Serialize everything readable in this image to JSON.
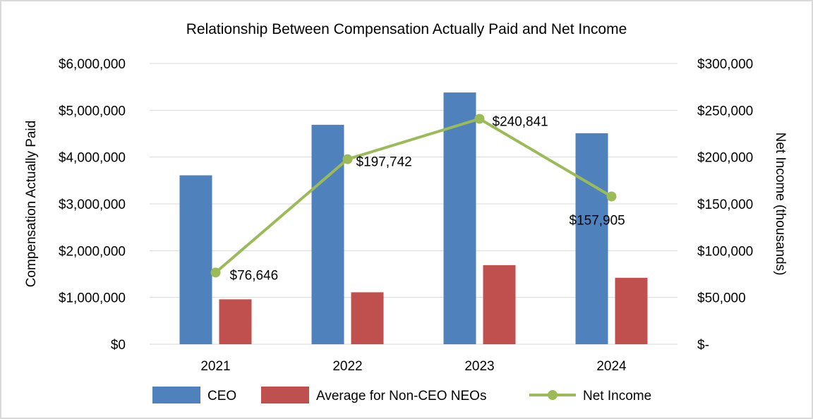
{
  "chart_data": {
    "type": "bar",
    "title": "Relationship Between Compensation Actually Paid and Net Income",
    "categories": [
      "2021",
      "2022",
      "2023",
      "2024"
    ],
    "ylabel": "Compensation Actually Paid",
    "y2label": "Net Income (thousands)",
    "ylim": [
      0,
      6000000
    ],
    "y2lim": [
      0,
      300000
    ],
    "yticks": [
      0,
      1000000,
      2000000,
      3000000,
      4000000,
      5000000,
      6000000
    ],
    "ytick_labels": [
      "$0",
      "$1,000,000",
      "$2,000,000",
      "$3,000,000",
      "$4,000,000",
      "$5,000,000",
      "$6,000,000"
    ],
    "y2ticks": [
      0,
      50000,
      100000,
      150000,
      200000,
      250000,
      300000
    ],
    "y2tick_labels": [
      "$-",
      "$50,000",
      "$100,000",
      "$150,000",
      "$200,000",
      "$250,000",
      "$300,000"
    ],
    "grid": true,
    "legend_position": "bottom",
    "series": [
      {
        "name": "CEO",
        "kind": "bar",
        "axis": "left",
        "color": "#4f81bd",
        "values": [
          3610000,
          4690000,
          5380000,
          4510000
        ]
      },
      {
        "name": "Average for Non-CEO NEOs",
        "kind": "bar",
        "axis": "left",
        "color": "#c0504d",
        "values": [
          960000,
          1110000,
          1690000,
          1420000
        ]
      },
      {
        "name": "Net Income",
        "kind": "line",
        "axis": "right",
        "color": "#9bbb59",
        "values": [
          76646,
          197742,
          240841,
          157905
        ],
        "labels": [
          "$76,646",
          "$197,742",
          "$240,841",
          "$157,905"
        ]
      }
    ]
  }
}
